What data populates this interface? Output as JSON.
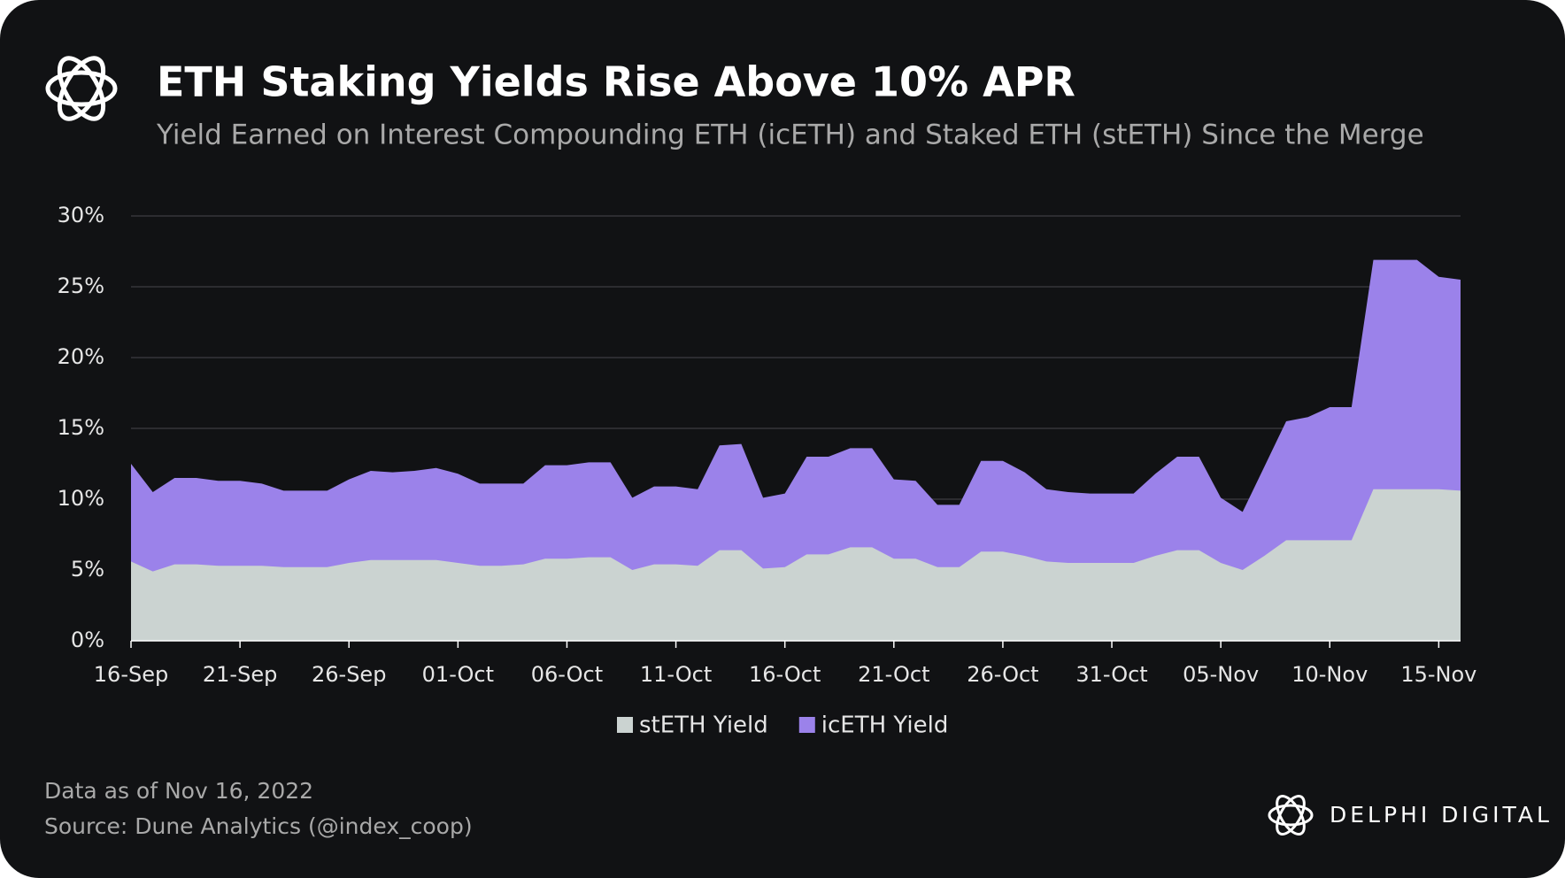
{
  "chart_data": {
    "type": "area",
    "title": "ETH Staking Yields Rise Above 10% APR",
    "subtitle": "Yield Earned on Interest Compounding ETH (icETH) and Staked ETH (stETH) Since the Merge",
    "categories": [
      "16-Sep",
      null,
      null,
      null,
      null,
      "21-Sep",
      null,
      null,
      null,
      null,
      "26-Sep",
      null,
      null,
      null,
      null,
      "01-Oct",
      null,
      null,
      null,
      null,
      "06-Oct",
      null,
      null,
      null,
      null,
      "11-Oct",
      null,
      null,
      null,
      null,
      "16-Oct",
      null,
      null,
      null,
      null,
      "21-Oct",
      null,
      null,
      null,
      null,
      "26-Oct",
      null,
      null,
      null,
      null,
      "31-Oct",
      null,
      null,
      null,
      null,
      "05-Nov",
      null,
      null,
      null,
      null,
      "10-Nov",
      null,
      null,
      null,
      null,
      "15-Nov",
      null
    ],
    "series": [
      {
        "name": "stETH Yield",
        "color": "#cbd3d1",
        "values": [
          5.6,
          4.9,
          5.4,
          5.4,
          5.3,
          5.3,
          5.3,
          5.2,
          5.2,
          5.2,
          5.5,
          5.7,
          5.7,
          5.7,
          5.7,
          5.5,
          5.3,
          5.3,
          5.4,
          5.8,
          5.8,
          5.9,
          5.9,
          5.0,
          5.4,
          5.4,
          5.3,
          6.4,
          6.4,
          5.1,
          5.2,
          6.1,
          6.1,
          6.6,
          6.6,
          5.8,
          5.8,
          5.2,
          5.2,
          6.3,
          6.3,
          6.0,
          5.6,
          5.5,
          5.5,
          5.5,
          5.5,
          6.0,
          6.4,
          6.4,
          5.5,
          5.0,
          6.0,
          7.1,
          7.1,
          7.1,
          7.1,
          10.7,
          10.7,
          10.7,
          10.7,
          10.6
        ]
      },
      {
        "name": "icETH Yield",
        "color": "#9b82ea",
        "values": [
          12.5,
          10.5,
          11.5,
          11.5,
          11.3,
          11.3,
          11.1,
          10.6,
          10.6,
          10.6,
          11.4,
          12.0,
          11.9,
          12.0,
          12.2,
          11.8,
          11.1,
          11.1,
          11.1,
          12.4,
          12.4,
          12.6,
          12.6,
          10.1,
          10.9,
          10.9,
          10.7,
          13.8,
          13.9,
          10.1,
          10.4,
          13.0,
          13.0,
          13.6,
          13.6,
          11.4,
          11.3,
          9.6,
          9.6,
          12.7,
          12.7,
          11.9,
          10.7,
          10.5,
          10.4,
          10.4,
          10.4,
          11.8,
          13.0,
          13.0,
          10.1,
          9.1,
          12.3,
          15.5,
          15.8,
          16.5,
          16.5,
          26.9,
          26.9,
          26.9,
          25.7,
          25.5
        ]
      }
    ],
    "ylim": [
      0,
      30
    ],
    "yticks": [
      {
        "value": 0,
        "label": "0%"
      },
      {
        "value": 5,
        "label": "5%"
      },
      {
        "value": 10,
        "label": "10%"
      },
      {
        "value": 15,
        "label": "15%"
      },
      {
        "value": 20,
        "label": "20%"
      },
      {
        "value": 25,
        "label": "25%"
      },
      {
        "value": 30,
        "label": "30%"
      }
    ],
    "grid": true,
    "notes": [
      "Data as of Nov 16, 2022",
      "Source: Dune Analytics (@index_coop)"
    ],
    "brand": "DELPHI DIGITAL"
  }
}
